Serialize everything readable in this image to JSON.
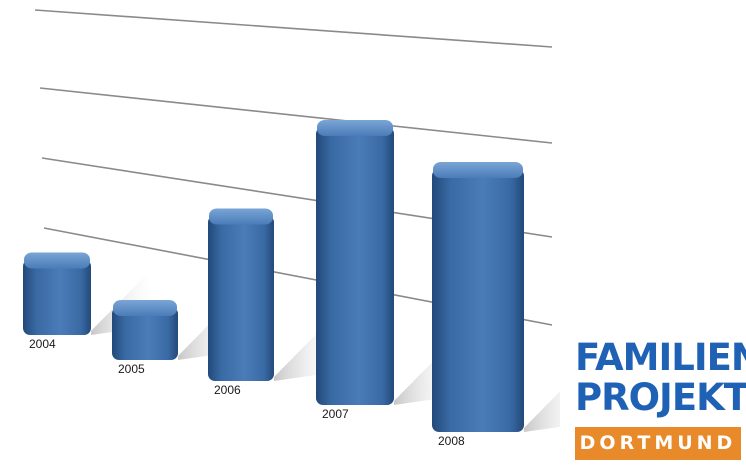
{
  "chart_data": {
    "type": "bar",
    "categories": [
      "2004",
      "2005",
      "2006",
      "2007",
      "2008"
    ],
    "values": [
      1.1,
      0.8,
      2.3,
      3.8,
      3.6
    ],
    "ylim": [
      0,
      5
    ],
    "grid": true,
    "legend": "none",
    "colors": {
      "bar": "#3f72ad",
      "bar_top": "#6a97cc",
      "bar_dark": "#22497a",
      "grid": "#8a8a8a"
    }
  },
  "logo": {
    "line1": "FAMILIEN-",
    "line2": "PROJEKT",
    "line3": "DORTMUND",
    "colors": {
      "blue": "#1f62b5",
      "orange": "#e8892a"
    }
  }
}
